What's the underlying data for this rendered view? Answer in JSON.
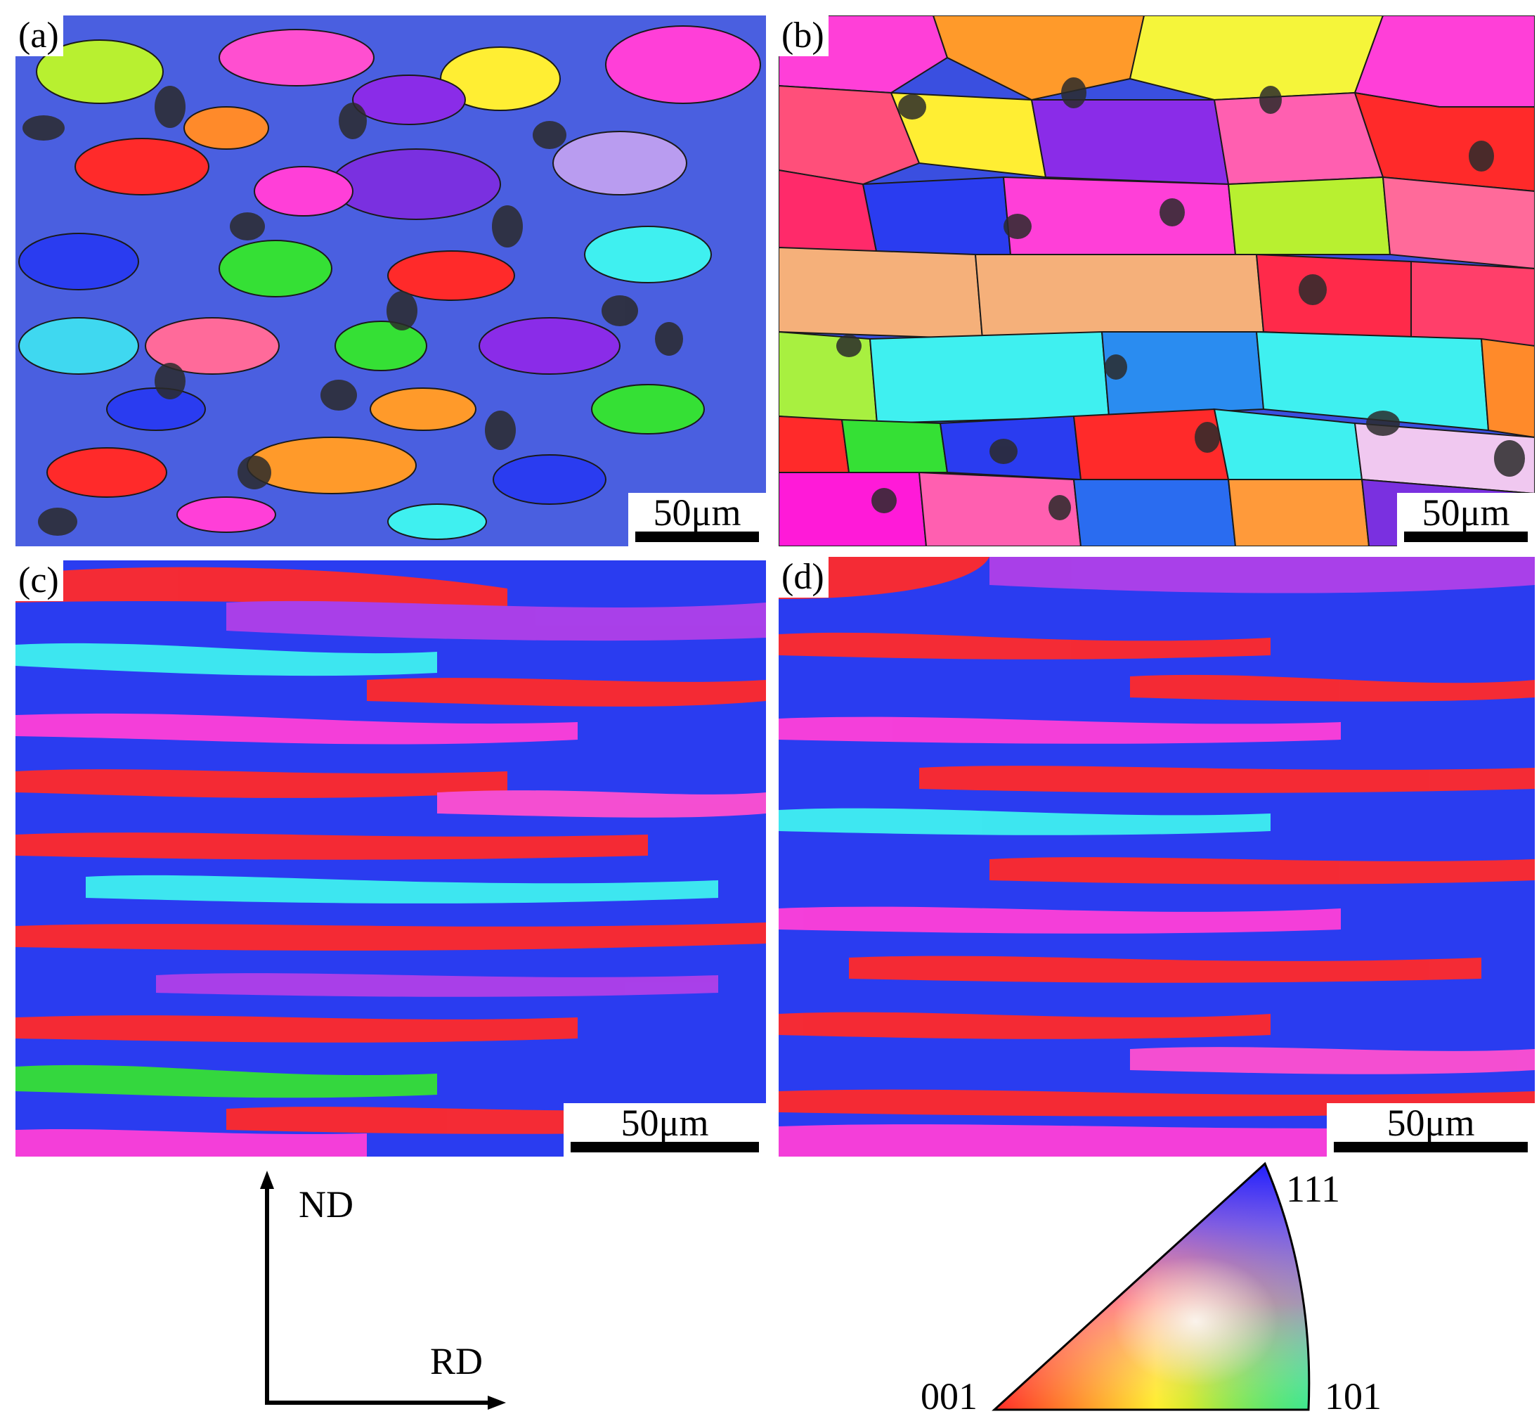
{
  "panels": [
    {
      "id": "a",
      "label": "(a)",
      "scale_label": "50μm"
    },
    {
      "id": "b",
      "label": "(b)",
      "scale_label": "50μm"
    },
    {
      "id": "c",
      "label": "(c)",
      "scale_label": "50μm"
    },
    {
      "id": "d",
      "label": "(d)",
      "scale_label": "50μm"
    }
  ],
  "axes": {
    "vertical_label": "ND",
    "horizontal_label": "RD"
  },
  "legend": {
    "corner_001": "001",
    "corner_101": "101",
    "corner_111": "111",
    "colors": {
      "c001": "#ff1a1a",
      "c101": "#22dd22",
      "c111": "#1a1aff"
    }
  },
  "colors": {
    "red": "#ff2a2a",
    "blue": "#2a3cf0",
    "green": "#35e035",
    "cyan": "#3ff0f0",
    "magenta": "#ff3fd8",
    "purple": "#8a2ce8",
    "orange": "#ff9a2a",
    "yellow": "#f2f23a",
    "pink": "#ff6a9a",
    "dark_spot": "#2a2a2a"
  }
}
